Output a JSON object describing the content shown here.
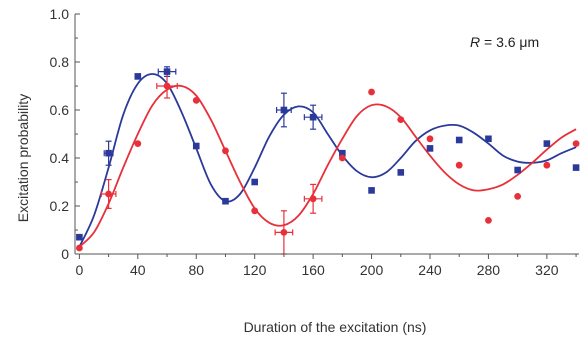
{
  "chart_data": {
    "type": "scatter",
    "title": "",
    "xlabel": "Duration of the excitation (ns)",
    "ylabel": "Excitation probability",
    "xlim": [
      -3,
      342
    ],
    "ylim": [
      0,
      1.0
    ],
    "xticks": [
      "0",
      "40",
      "80",
      "120",
      "160",
      "200",
      "240",
      "280",
      "320"
    ],
    "xtick_values": [
      0,
      40,
      80,
      120,
      160,
      200,
      240,
      280,
      320
    ],
    "yticks": [
      "0",
      "0.2",
      "0.4",
      "0.6",
      "0.8",
      "1.0"
    ],
    "ytick_values": [
      0,
      0.2,
      0.4,
      0.6,
      0.8,
      1.0
    ],
    "annotation": {
      "prefix": "R",
      "text": " = 3.6 μm"
    },
    "series": [
      {
        "marker": "square",
        "color": "#2b3a9a",
        "points": [
          {
            "x": 0,
            "y": 0.07
          },
          {
            "x": 20,
            "y": 0.42,
            "xerr": 3,
            "yerr": 0.05
          },
          {
            "x": 40,
            "y": 0.74
          },
          {
            "x": 60,
            "y": 0.76,
            "xerr": 6,
            "yerr": 0.02
          },
          {
            "x": 80,
            "y": 0.45
          },
          {
            "x": 100,
            "y": 0.22
          },
          {
            "x": 120,
            "y": 0.3
          },
          {
            "x": 140,
            "y": 0.6,
            "xerr": 5,
            "yerr": 0.07
          },
          {
            "x": 160,
            "y": 0.57,
            "xerr": 6,
            "yerr": 0.05
          },
          {
            "x": 180,
            "y": 0.42
          },
          {
            "x": 200,
            "y": 0.265
          },
          {
            "x": 220,
            "y": 0.34
          },
          {
            "x": 240,
            "y": 0.44
          },
          {
            "x": 260,
            "y": 0.475
          },
          {
            "x": 280,
            "y": 0.48
          },
          {
            "x": 300,
            "y": 0.35
          },
          {
            "x": 320,
            "y": 0.46
          },
          {
            "x": 340,
            "y": 0.36
          }
        ],
        "curve": [
          [
            0,
            0.03
          ],
          [
            10,
            0.16
          ],
          [
            20,
            0.36
          ],
          [
            30,
            0.58
          ],
          [
            40,
            0.71
          ],
          [
            50,
            0.75
          ],
          [
            60,
            0.71
          ],
          [
            70,
            0.59
          ],
          [
            80,
            0.44
          ],
          [
            90,
            0.29
          ],
          [
            100,
            0.22
          ],
          [
            110,
            0.25
          ],
          [
            120,
            0.36
          ],
          [
            130,
            0.49
          ],
          [
            140,
            0.58
          ],
          [
            150,
            0.615
          ],
          [
            160,
            0.59
          ],
          [
            170,
            0.5
          ],
          [
            180,
            0.41
          ],
          [
            190,
            0.345
          ],
          [
            200,
            0.32
          ],
          [
            210,
            0.34
          ],
          [
            220,
            0.4
          ],
          [
            230,
            0.47
          ],
          [
            240,
            0.515
          ],
          [
            250,
            0.535
          ],
          [
            260,
            0.535
          ],
          [
            270,
            0.505
          ],
          [
            280,
            0.46
          ],
          [
            290,
            0.41
          ],
          [
            300,
            0.385
          ],
          [
            310,
            0.38
          ],
          [
            320,
            0.39
          ],
          [
            330,
            0.42
          ],
          [
            340,
            0.445
          ]
        ]
      },
      {
        "marker": "circle",
        "color": "#e8303a",
        "points": [
          {
            "x": 0,
            "y": 0.025
          },
          {
            "x": 20,
            "y": 0.25,
            "xerr": 5,
            "yerr": 0.06
          },
          {
            "x": 40,
            "y": 0.46
          },
          {
            "x": 60,
            "y": 0.7,
            "xerr": 7,
            "yerr": 0.05
          },
          {
            "x": 80,
            "y": 0.64
          },
          {
            "x": 100,
            "y": 0.43
          },
          {
            "x": 120,
            "y": 0.18
          },
          {
            "x": 140,
            "y": 0.09,
            "xerr": 6,
            "yerr": 0.09
          },
          {
            "x": 160,
            "y": 0.23,
            "xerr": 6,
            "yerr": 0.06
          },
          {
            "x": 180,
            "y": 0.4
          },
          {
            "x": 200,
            "y": 0.675
          },
          {
            "x": 220,
            "y": 0.56
          },
          {
            "x": 240,
            "y": 0.48
          },
          {
            "x": 260,
            "y": 0.37
          },
          {
            "x": 280,
            "y": 0.14
          },
          {
            "x": 300,
            "y": 0.24
          },
          {
            "x": 320,
            "y": 0.37
          },
          {
            "x": 340,
            "y": 0.46
          }
        ],
        "curve": [
          [
            0,
            0.03
          ],
          [
            10,
            0.09
          ],
          [
            20,
            0.21
          ],
          [
            30,
            0.36
          ],
          [
            40,
            0.5
          ],
          [
            50,
            0.62
          ],
          [
            60,
            0.685
          ],
          [
            70,
            0.7
          ],
          [
            80,
            0.66
          ],
          [
            90,
            0.56
          ],
          [
            100,
            0.43
          ],
          [
            110,
            0.3
          ],
          [
            120,
            0.19
          ],
          [
            130,
            0.13
          ],
          [
            140,
            0.12
          ],
          [
            150,
            0.16
          ],
          [
            160,
            0.25
          ],
          [
            170,
            0.37
          ],
          [
            180,
            0.48
          ],
          [
            190,
            0.575
          ],
          [
            200,
            0.62
          ],
          [
            210,
            0.615
          ],
          [
            220,
            0.57
          ],
          [
            230,
            0.49
          ],
          [
            240,
            0.41
          ],
          [
            250,
            0.34
          ],
          [
            260,
            0.29
          ],
          [
            270,
            0.265
          ],
          [
            280,
            0.27
          ],
          [
            290,
            0.29
          ],
          [
            300,
            0.33
          ],
          [
            310,
            0.38
          ],
          [
            320,
            0.435
          ],
          [
            330,
            0.485
          ],
          [
            340,
            0.52
          ]
        ]
      }
    ]
  }
}
